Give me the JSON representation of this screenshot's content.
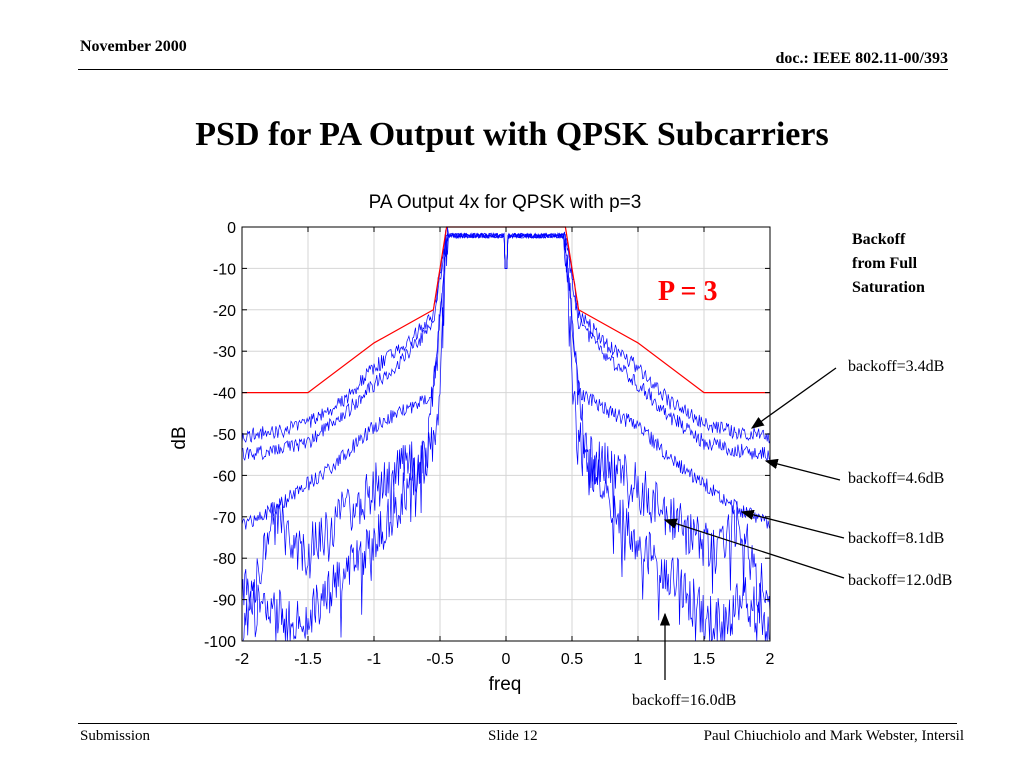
{
  "header": {
    "date": "November 2000",
    "doc": "doc.: IEEE 802.11-00/393"
  },
  "slide_title": "PSD for PA Output with QPSK Subcarriers",
  "annotations": {
    "p_label": "P = 3",
    "backoff_heading": [
      "Backoff",
      "from Full",
      "Saturation"
    ],
    "labels": [
      "backoff=3.4dB",
      "backoff=4.6dB",
      "backoff=8.1dB",
      "backoff=12.0dB",
      "backoff=16.0dB"
    ]
  },
  "footer": {
    "left": "Submission",
    "center": "Slide 12",
    "right": "Paul Chiuchiolo and Mark Webster, Intersil"
  },
  "colors": {
    "mask": "#ff0000",
    "series": "#0000ff",
    "grid": "#d6d6d6",
    "annotation": "#ff0000"
  },
  "chart_data": {
    "type": "line",
    "title": "PA Output 4x for QPSK with p=3",
    "xlabel": "freq",
    "ylabel": "dB",
    "xlim": [
      -2,
      2
    ],
    "ylim": [
      -100,
      0
    ],
    "xticks": [
      -2,
      -1.5,
      -1,
      -0.5,
      0,
      0.5,
      1,
      1.5,
      2
    ],
    "xtick_labels": [
      "-2",
      "-1.5",
      "-1",
      "-0.5",
      "0",
      "0.5",
      "1",
      "1.5",
      "2"
    ],
    "yticks": [
      0,
      -10,
      -20,
      -30,
      -40,
      -50,
      -60,
      -70,
      -80,
      -90,
      -100
    ],
    "ytick_labels": [
      "0",
      "-10",
      "-20",
      "-30",
      "-40",
      "-50",
      "-60",
      "-70",
      "-80",
      "-90",
      "-100"
    ],
    "grid": true,
    "mask": {
      "x": [
        -2,
        -1.5,
        -1,
        -0.55,
        -0.5,
        -0.45,
        0.45,
        0.5,
        0.55,
        1,
        1.5,
        2
      ],
      "y": [
        -40,
        -40,
        -28,
        -20,
        -10,
        0,
        0,
        -10,
        -20,
        -28,
        -40,
        -40
      ]
    },
    "series": [
      {
        "label": "backoff=3.4dB",
        "x": [
          -2,
          -1.75,
          -1.5,
          -1.25,
          -1,
          -0.75,
          -0.55,
          -0.47,
          -0.44,
          0.44,
          0.47,
          0.55,
          0.75,
          1,
          1.25,
          1.5,
          1.75,
          2
        ],
        "y": [
          -50.5,
          -49.5,
          -47.5,
          -42.5,
          -34,
          -28,
          -21,
          -5,
          -1.5,
          -1.5,
          -5,
          -21,
          -28,
          -34,
          -42.5,
          -47.5,
          -49.5,
          -50.5
        ]
      },
      {
        "label": "backoff=4.6dB",
        "x": [
          -2,
          -1.75,
          -1.5,
          -1.25,
          -1,
          -0.75,
          -0.55,
          -0.47,
          -0.44,
          0.44,
          0.47,
          0.55,
          0.75,
          1,
          1.25,
          1.5,
          1.75,
          2
        ],
        "y": [
          -55,
          -54,
          -52,
          -46,
          -38,
          -31,
          -23,
          -6,
          -1.5,
          -1.5,
          -6,
          -23,
          -31,
          -38,
          -46,
          -52,
          -54,
          -55
        ]
      },
      {
        "label": "backoff=8.1dB",
        "x": [
          -2,
          -1.75,
          -1.5,
          -1.25,
          -1,
          -0.75,
          -0.55,
          -0.47,
          -0.44,
          0.44,
          0.47,
          0.55,
          0.75,
          1,
          1.25,
          1.5,
          1.75,
          2
        ],
        "y": [
          -72,
          -68,
          -62,
          -56,
          -48,
          -44,
          -40,
          -10,
          -1.5,
          -1.5,
          -10,
          -40,
          -44,
          -48,
          -56,
          -62,
          -68,
          -72
        ]
      },
      {
        "label": "backoff=12.0dB",
        "x": [
          -2,
          -1.9,
          -1.8,
          -1.7,
          -1.6,
          -1.5,
          -1.25,
          -1,
          -0.8,
          -0.65,
          -0.6,
          -0.55,
          -0.47,
          -0.44,
          0.44,
          0.47,
          0.55,
          0.6,
          0.65,
          0.8,
          1,
          1.25,
          1.5,
          1.6,
          1.7,
          1.8,
          1.9,
          2
        ],
        "y": [
          -100,
          -88,
          -72,
          -72,
          -78,
          -77,
          -70,
          -63,
          -58,
          -56,
          -55,
          -40,
          -10,
          -1.5,
          -1.5,
          -10,
          -40,
          -55,
          -56,
          -58,
          -63,
          -70,
          -77,
          -78,
          -72,
          -72,
          -88,
          -100
        ]
      },
      {
        "label": "backoff=16.0dB",
        "x": [
          -2,
          -1.95,
          -1.9,
          -1.8,
          -1.65,
          -1.5,
          -1.3,
          -1.1,
          -0.95,
          -0.8,
          -0.65,
          -0.55,
          -0.5,
          -0.47,
          -0.44,
          0.44,
          0.47,
          0.5,
          0.55,
          0.65,
          0.8,
          0.95,
          1.1,
          1.3,
          1.5,
          1.65,
          1.8,
          1.9,
          1.95,
          2
        ],
        "y": [
          -90,
          -84,
          -92,
          -90,
          -96,
          -94,
          -86,
          -80,
          -74,
          -66,
          -58,
          -52,
          -38,
          -10,
          -1.5,
          -1.5,
          -10,
          -38,
          -52,
          -58,
          -66,
          -74,
          -80,
          -86,
          -94,
          -96,
          -90,
          -92,
          -84,
          -90
        ]
      }
    ]
  }
}
